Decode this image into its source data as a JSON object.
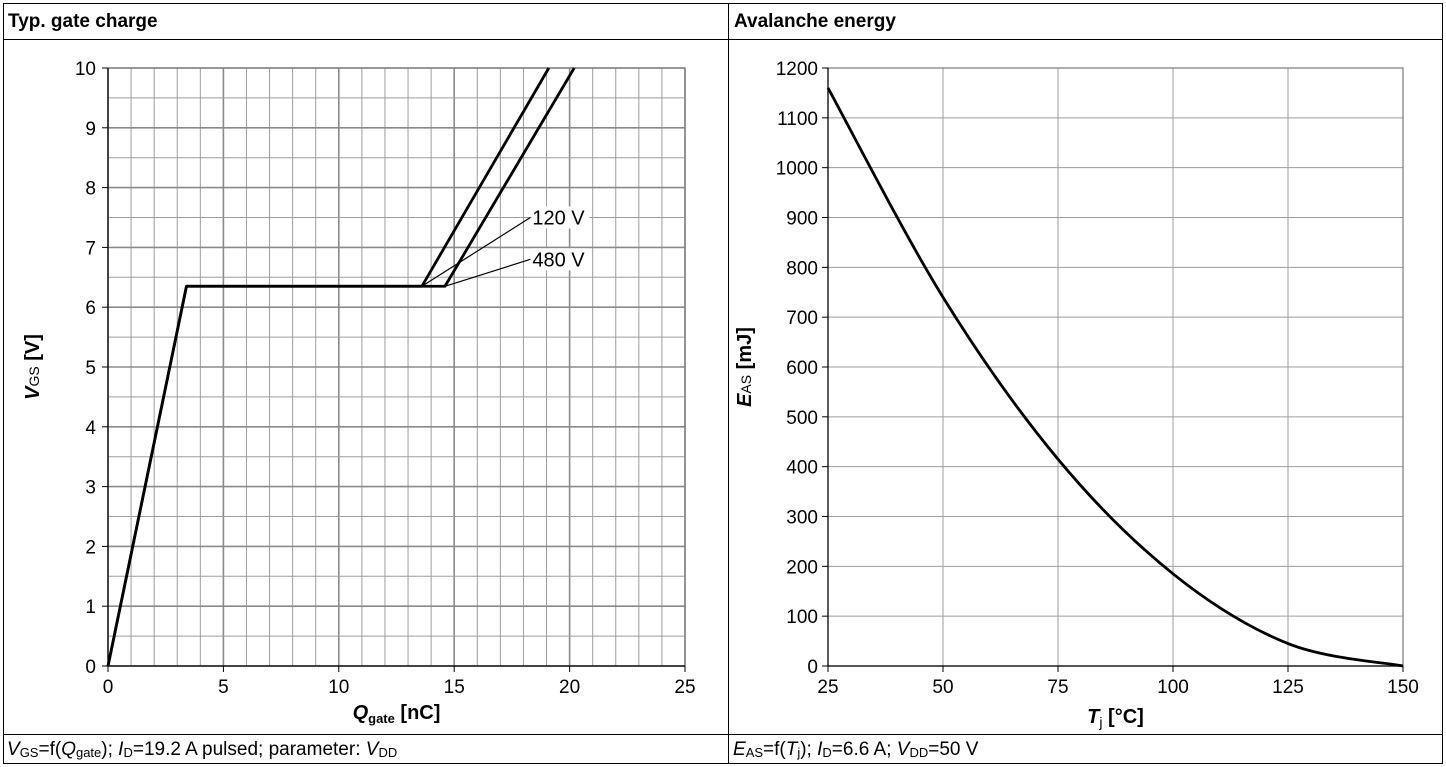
{
  "chart_data": [
    {
      "type": "line",
      "title": "Typ. gate charge",
      "xlabel": "Q_gate [nC]",
      "xlabel_main": "Q",
      "xlabel_sub": "gate",
      "xlabel_unit": " [nC]",
      "ylabel": "V_GS [V]",
      "ylabel_main": "V",
      "ylabel_sub": "GS",
      "ylabel_unit": " [V]",
      "xlim": [
        0,
        25
      ],
      "ylim": [
        0,
        10
      ],
      "xticks": [
        "0",
        "5",
        "10",
        "15",
        "20",
        "25"
      ],
      "yticks": [
        "0",
        "1",
        "2",
        "3",
        "4",
        "5",
        "6",
        "7",
        "8",
        "9",
        "10"
      ],
      "grid": "major and minor",
      "series": [
        {
          "name": "120 V",
          "x": [
            0,
            3.4,
            13.6,
            19.1
          ],
          "y": [
            0,
            6.35,
            6.35,
            10
          ]
        },
        {
          "name": "480 V",
          "x": [
            0,
            3.4,
            14.6,
            20.2
          ],
          "y": [
            0,
            6.35,
            6.35,
            10
          ]
        }
      ],
      "annotations": [
        {
          "text": "120 V",
          "x": 18.3,
          "y": 7.5,
          "points_to": [
            13.6,
            6.35
          ]
        },
        {
          "text": "480 V",
          "x": 18.3,
          "y": 6.8,
          "points_to": [
            14.6,
            6.35
          ]
        }
      ],
      "caption": "V_GS=f(Q_gate); I_D=19.2 A pulsed; parameter: V_DD"
    },
    {
      "type": "line",
      "title": "Avalanche energy",
      "xlabel": "T_j [°C]",
      "xlabel_main": "T",
      "xlabel_sub": "j",
      "xlabel_unit": " [°C]",
      "ylabel": "E_AS [mJ]",
      "ylabel_main": "E",
      "ylabel_sub": "AS",
      "ylabel_unit": " [mJ]",
      "xlim": [
        25,
        150
      ],
      "ylim": [
        0,
        1200
      ],
      "xticks": [
        "25",
        "50",
        "75",
        "100",
        "125",
        "150"
      ],
      "yticks": [
        "0",
        "100",
        "200",
        "300",
        "400",
        "500",
        "600",
        "700",
        "800",
        "900",
        "1000",
        "1100",
        "1200"
      ],
      "grid": "major",
      "series": [
        {
          "name": "",
          "x": [
            25,
            50,
            75,
            100,
            125,
            150
          ],
          "y": [
            1160,
            740,
            415,
            185,
            45,
            0
          ]
        }
      ],
      "caption": "E_AS=f(T_j); I_D=6.6 A; V_DD=50 V"
    }
  ],
  "captions": {
    "left": {
      "v": "V",
      "gs": "GS",
      "f_open": "=f(",
      "q": "Q",
      "gate": "gate",
      "rest1": "); ",
      "i": "I",
      "d": "D",
      "rest2": "=19.2 A pulsed; parameter: ",
      "v2": "V",
      "dd": "DD"
    },
    "right": {
      "e": "E",
      "as": "AS",
      "f_open": "=f(",
      "t": "T",
      "j": "j",
      "rest1": "); ",
      "i": "I",
      "d": "D",
      "rest2": "=6.6 A; ",
      "v": "V",
      "dd": "DD",
      "rest3": "=50 V"
    }
  }
}
